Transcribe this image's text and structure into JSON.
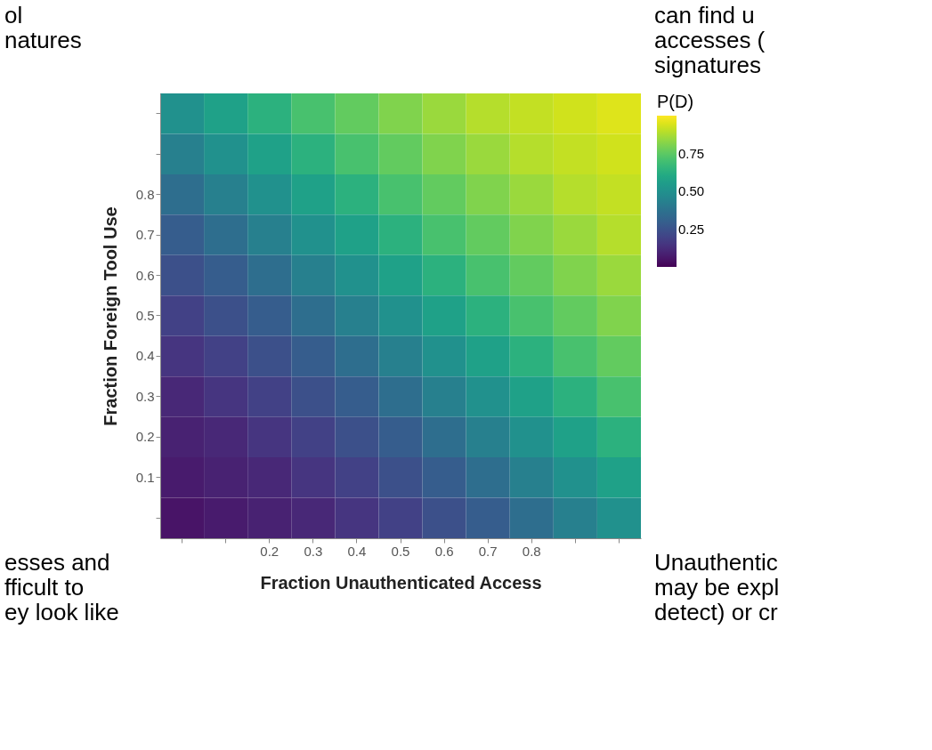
{
  "chart_data": {
    "type": "heatmap",
    "xlabel": "Fraction Unauthenticated Access",
    "ylabel": "Fraction Foreign Tool Use",
    "clabel": "P(D)",
    "categories": [
      null,
      null,
      "0.2",
      "0.3",
      "0.4",
      "0.5",
      "0.6",
      "0.7",
      "0.8",
      null,
      null
    ],
    "y_categories": [
      null,
      null,
      "0.8",
      "0.7",
      "0.6",
      "0.5",
      "0.4",
      "0.3",
      "0.2",
      "0.1",
      null
    ],
    "cells": [
      [
        0.5,
        0.57,
        0.64,
        0.71,
        0.76,
        0.81,
        0.85,
        0.89,
        0.91,
        0.93,
        0.95
      ],
      [
        0.43,
        0.5,
        0.57,
        0.64,
        0.71,
        0.76,
        0.81,
        0.85,
        0.89,
        0.91,
        0.93
      ],
      [
        0.36,
        0.43,
        0.5,
        0.57,
        0.64,
        0.71,
        0.76,
        0.81,
        0.85,
        0.89,
        0.91
      ],
      [
        0.29,
        0.36,
        0.43,
        0.5,
        0.57,
        0.64,
        0.71,
        0.76,
        0.81,
        0.85,
        0.89
      ],
      [
        0.24,
        0.29,
        0.36,
        0.43,
        0.5,
        0.57,
        0.64,
        0.71,
        0.76,
        0.81,
        0.85
      ],
      [
        0.19,
        0.24,
        0.29,
        0.36,
        0.43,
        0.5,
        0.57,
        0.64,
        0.71,
        0.76,
        0.81
      ],
      [
        0.15,
        0.19,
        0.24,
        0.29,
        0.36,
        0.43,
        0.5,
        0.57,
        0.64,
        0.71,
        0.76
      ],
      [
        0.11,
        0.15,
        0.19,
        0.24,
        0.29,
        0.36,
        0.43,
        0.5,
        0.57,
        0.64,
        0.71
      ],
      [
        0.09,
        0.11,
        0.15,
        0.19,
        0.24,
        0.29,
        0.36,
        0.43,
        0.5,
        0.57,
        0.64
      ],
      [
        0.07,
        0.09,
        0.11,
        0.15,
        0.19,
        0.24,
        0.29,
        0.36,
        0.43,
        0.5,
        0.57
      ],
      [
        0.05,
        0.07,
        0.09,
        0.11,
        0.15,
        0.19,
        0.24,
        0.29,
        0.36,
        0.43,
        0.5
      ]
    ],
    "clim": [
      0,
      1
    ],
    "cticks": [
      0.25,
      {
        "value": 0.5,
        "label": "0.50"
      },
      0.75
    ],
    "grid": false,
    "annotations": [
      "ol\nnatures",
      "can find u\naccesses (\nsignatures",
      "esses and\nfficult to\ney look like",
      "Unauthentic\nmay be expl\ndetect) or cr"
    ]
  }
}
